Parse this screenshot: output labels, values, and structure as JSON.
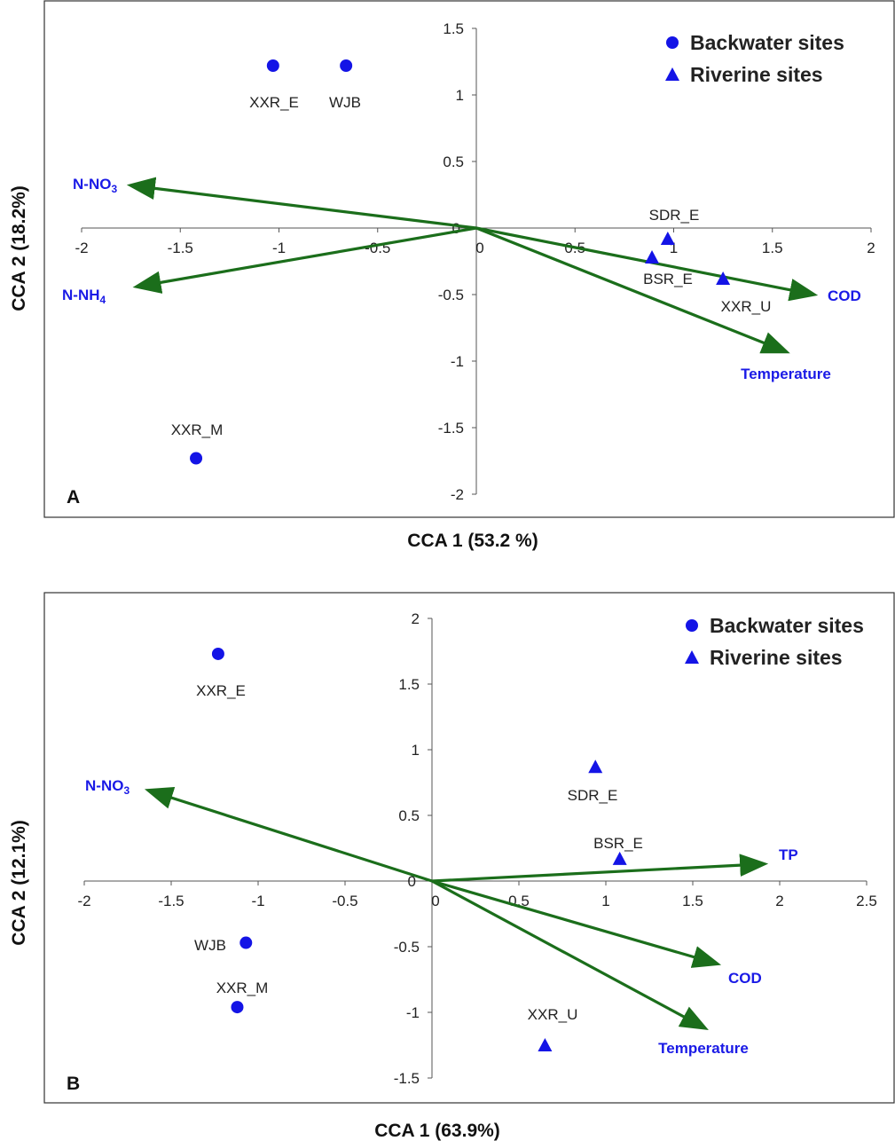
{
  "colors": {
    "site_marker": "#1414e6",
    "arrow": "#1b6e1b",
    "env_label": "#1a1ae6",
    "axis": "#555555",
    "frame": "#333333"
  },
  "legend": {
    "backwater": "Backwater sites",
    "riverine": "Riverine sites"
  },
  "chart_data": [
    {
      "type": "scatter",
      "panel": "A",
      "xlabel": "CCA 1 (53.2 %)",
      "ylabel": "CCA 2 (18.2%)",
      "xlim": [
        -2,
        2
      ],
      "ylim": [
        -2,
        1.5
      ],
      "xticks": [
        "-2",
        "-1.5",
        "-1",
        "-0.5",
        "0",
        "0.5",
        "1",
        "1.5",
        "2"
      ],
      "yticks": [
        "-2",
        "-1.5",
        "-1",
        "-0.5",
        "0",
        "0.5",
        "1",
        "1.5"
      ],
      "legend_position": "top-right",
      "sites": [
        {
          "name": "XXR_E",
          "type": "backwater",
          "x": -1.03,
          "y": 1.22
        },
        {
          "name": "WJB",
          "type": "backwater",
          "x": -0.66,
          "y": 1.22
        },
        {
          "name": "XXR_M",
          "type": "backwater",
          "x": -1.42,
          "y": -1.73
        },
        {
          "name": "SDR_E",
          "type": "riverine",
          "x": 0.97,
          "y": -0.08
        },
        {
          "name": "BSR_E",
          "type": "riverine",
          "x": 0.89,
          "y": -0.22
        },
        {
          "name": "XXR_U",
          "type": "riverine",
          "x": 1.25,
          "y": -0.38
        }
      ],
      "vectors": [
        {
          "label": "N-NO",
          "sub": "3",
          "x": -1.75,
          "y": 0.32
        },
        {
          "label": "N-NH",
          "sub": "4",
          "x": -1.72,
          "y": -0.44
        },
        {
          "label": "COD",
          "x": 1.71,
          "y": -0.5
        },
        {
          "label": "Temperature",
          "x": 1.57,
          "y": -0.93
        }
      ]
    },
    {
      "type": "scatter",
      "panel": "B",
      "xlabel": "CCA 1 (63.9%)",
      "ylabel": "CCA 2 (12.1%)",
      "xlim": [
        -2,
        2.5
      ],
      "ylim": [
        -1.5,
        2
      ],
      "xticks": [
        "-2",
        "-1.5",
        "-1",
        "-0.5",
        "0",
        "0.5",
        "1",
        "1.5",
        "2",
        "2.5"
      ],
      "yticks": [
        "-1.5",
        "-1",
        "-0.5",
        "0",
        "0.5",
        "1",
        "1.5",
        "2"
      ],
      "legend_position": "top-right",
      "sites": [
        {
          "name": "XXR_E",
          "type": "backwater",
          "x": -1.23,
          "y": 1.73
        },
        {
          "name": "WJB",
          "type": "backwater",
          "x": -1.07,
          "y": -0.47
        },
        {
          "name": "XXR_M",
          "type": "backwater",
          "x": -1.12,
          "y": -0.96
        },
        {
          "name": "SDR_E",
          "type": "riverine",
          "x": 0.94,
          "y": 0.87
        },
        {
          "name": "BSR_E",
          "type": "riverine",
          "x": 1.08,
          "y": 0.17
        },
        {
          "name": "XXR_U",
          "type": "riverine",
          "x": 0.65,
          "y": -1.25
        }
      ],
      "vectors": [
        {
          "label": "N-NO",
          "sub": "3",
          "x": -1.63,
          "y": 0.69
        },
        {
          "label": "TP",
          "x": 1.91,
          "y": 0.13
        },
        {
          "label": "COD",
          "x": 1.64,
          "y": -0.63
        },
        {
          "label": "Temperature",
          "x": 1.57,
          "y": -1.12
        }
      ]
    }
  ]
}
